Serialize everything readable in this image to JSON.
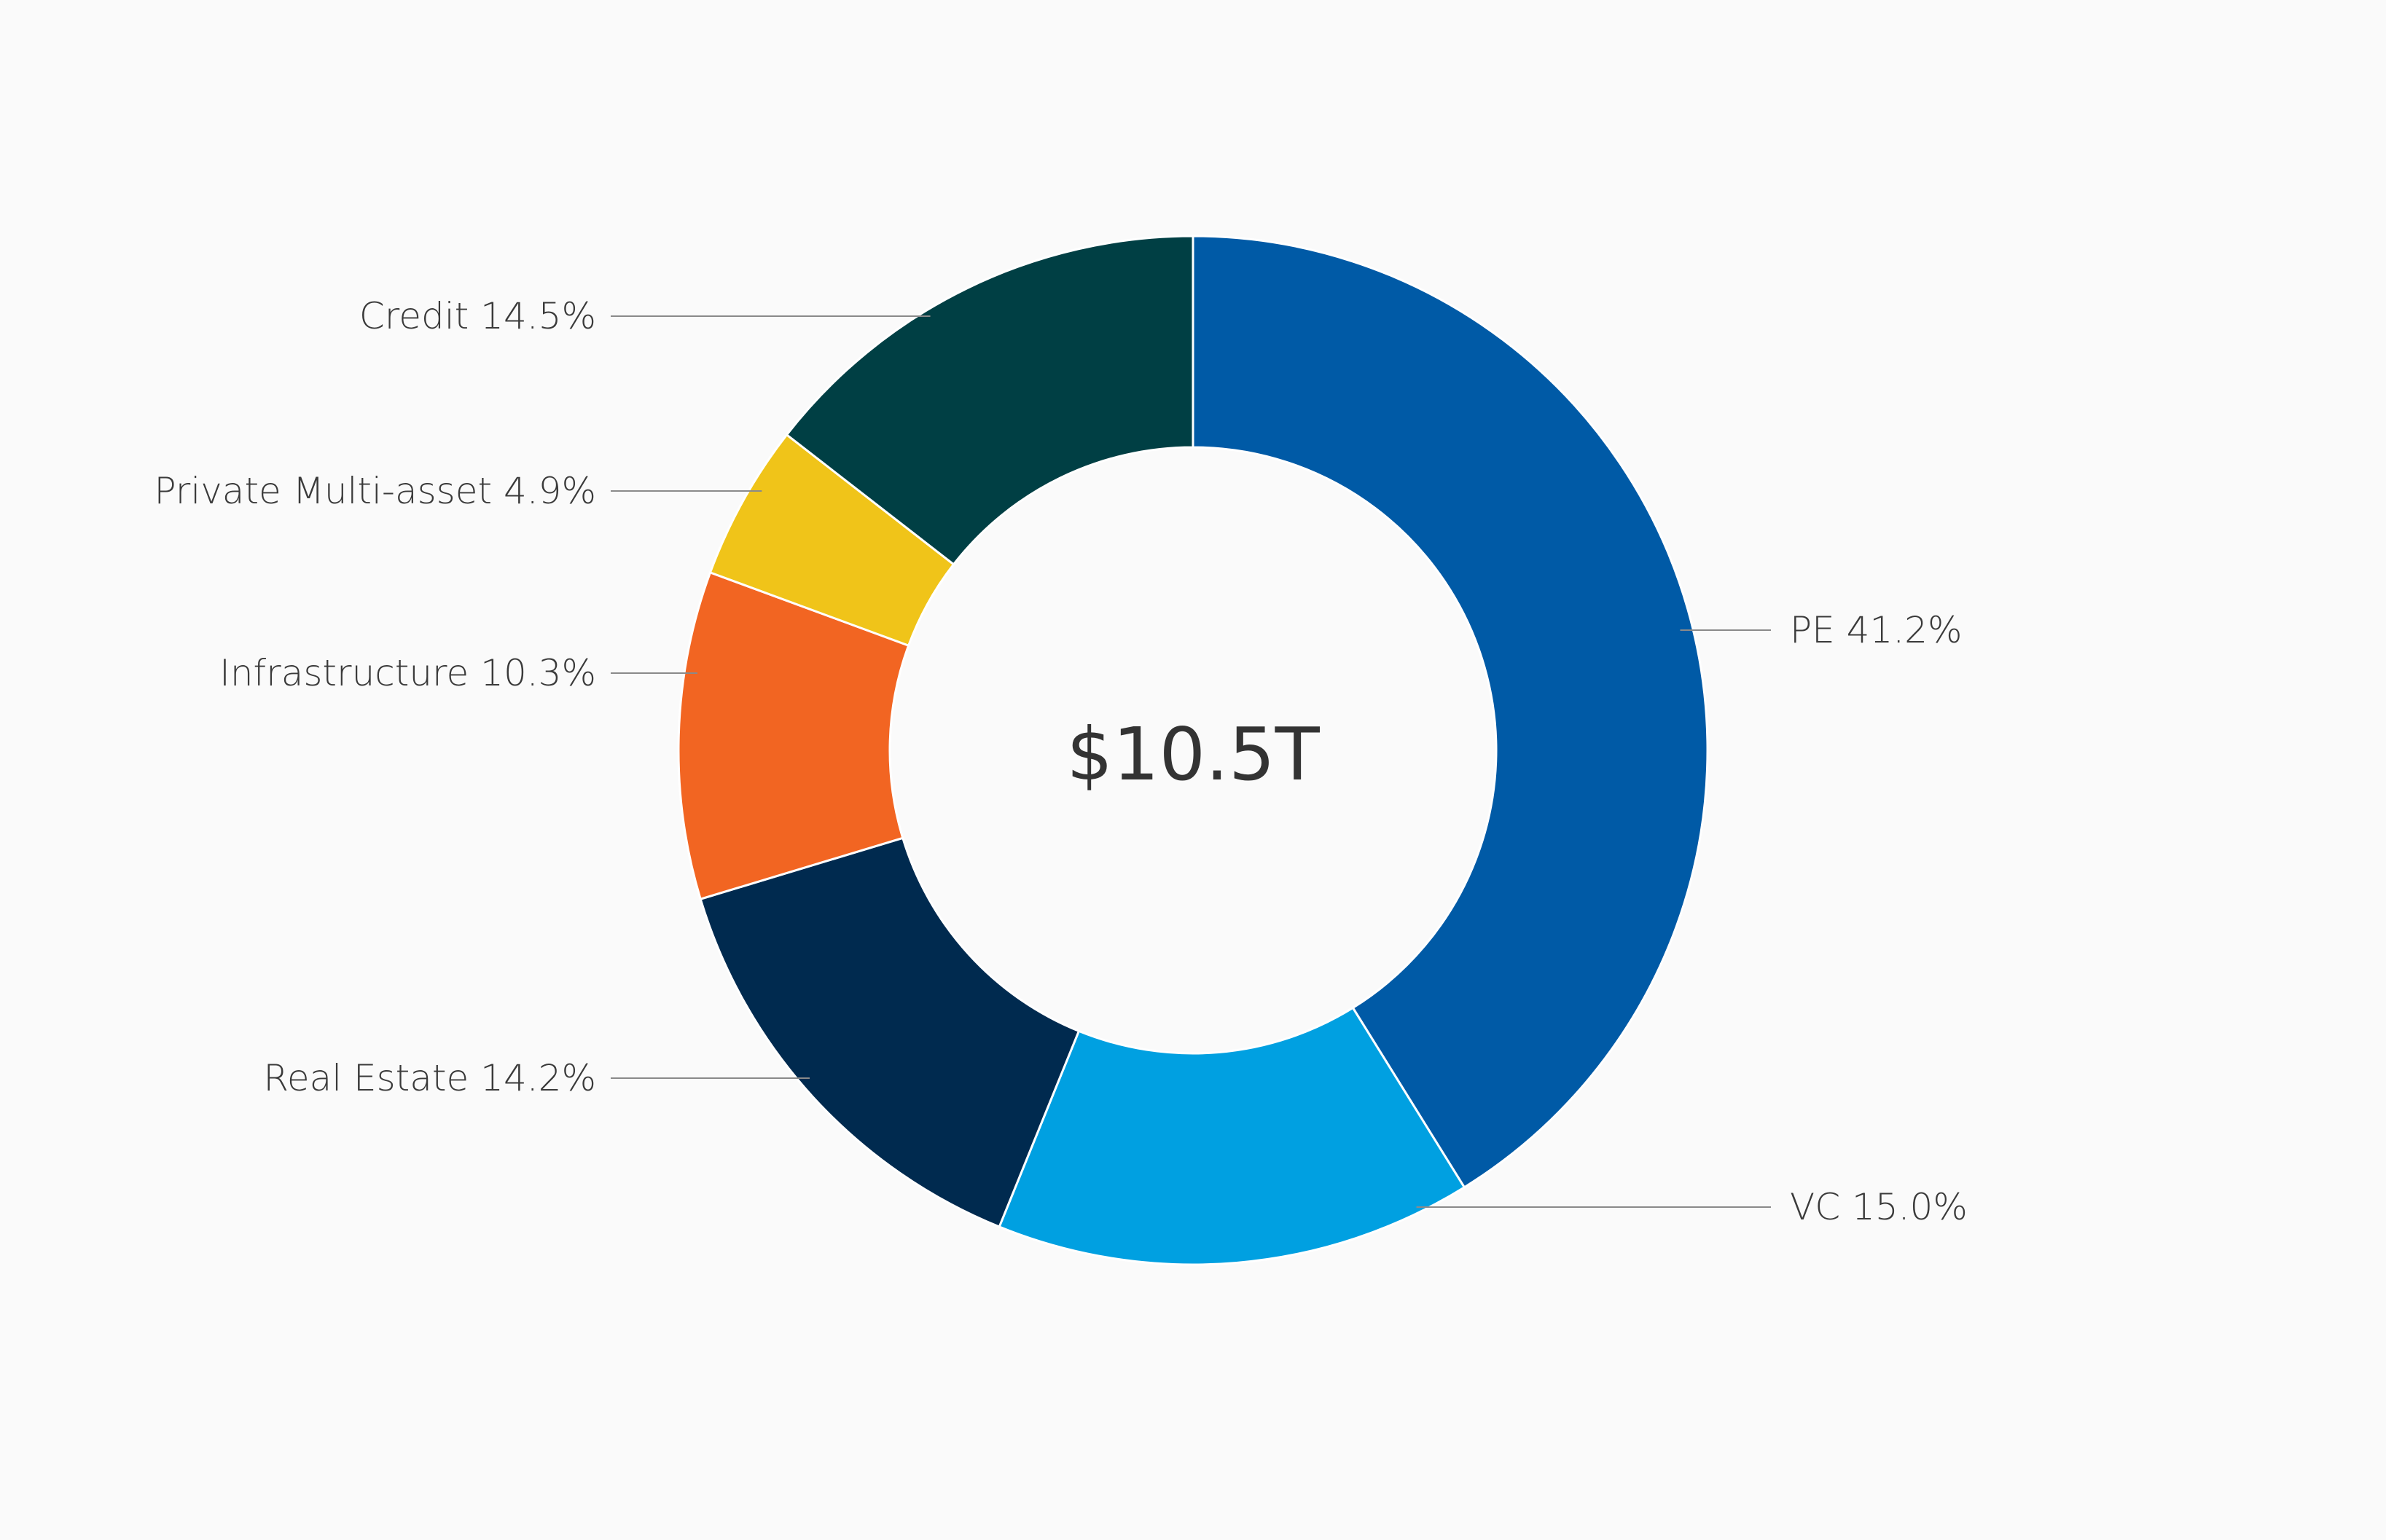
{
  "chart_data": {
    "type": "pie",
    "variant": "donut",
    "center_label": "$10.5T",
    "slices": [
      {
        "label": "PE 41.2%",
        "name": "PE",
        "value": 41.2,
        "color": "#005aa6"
      },
      {
        "label": "VC 15.0%",
        "name": "VC",
        "value": 15.0,
        "color": "#00a0e1"
      },
      {
        "label": "Real Estate 14.2%",
        "name": "Real Estate",
        "value": 14.2,
        "color": "#002a4f"
      },
      {
        "label": "Infrastructure 10.3%",
        "name": "Infrastructure",
        "value": 10.3,
        "color": "#f26522"
      },
      {
        "label": "Private Multi-asset 4.9%",
        "name": "Private Multi-asset",
        "value": 4.9,
        "color": "#f0c419"
      },
      {
        "label": "Credit 14.5%",
        "name": "Credit",
        "value": 14.5,
        "color": "#003f44"
      }
    ],
    "start_angle": "top",
    "direction": "clockwise"
  }
}
